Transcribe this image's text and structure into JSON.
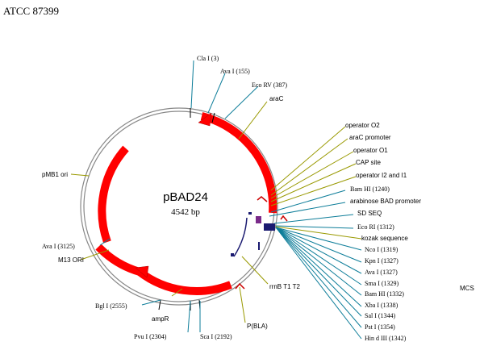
{
  "header": {
    "strain": "ATCC 87399"
  },
  "plasmid": {
    "name": "pBAD24",
    "size": "4542 bp"
  },
  "colors": {
    "feature_red": "#ff0000",
    "line_blue": "#0d7d99",
    "line_olive": "#999900",
    "backbone": "#888888",
    "purple": "#7a2a8a",
    "navy": "#1a1a70"
  },
  "labels": {
    "cla": "Cla  I (3)",
    "ava155": "Ava  I (155)",
    "ecorv": "Eco  RV (387)",
    "arac": "araC",
    "o2": "operator O2",
    "arac_promoter": "araC promoter",
    "o1": "operator O1",
    "cap": "CAP site",
    "i2i1": "operator I2 and I1",
    "bamhi1240": "Bam HI (1240)",
    "arabad": "arabinose BAD promoter",
    "sdseq": "SD SEQ",
    "ecori": "Eco RI (1312)",
    "kozak": "kozak sequence",
    "nco": "Nco  I (1319)",
    "kpn": "Kpn  I (1327)",
    "ava1327": "Ava  I (1327)",
    "sma": "Sma  I (1329)",
    "bamhi1332": "Bam HI (1332)",
    "xba": "Xba  I (1338)",
    "sal": "Sal  I (1344)",
    "pst": "Pst  I (1354)",
    "hind": "Hin d III (1342)",
    "mcs": "MCS",
    "rrnb": "rrnB T1 T2",
    "pbla": "P(BLA)",
    "sca": "Sca  I (2192)",
    "pvu": "Pvu  I (2304)",
    "ampr": "ampR",
    "bgl": "Bgl  I (2555)",
    "m13": "M13 ORI",
    "ava3125": "Ava  I (3125)",
    "pmb1": "pMB1 ori"
  }
}
